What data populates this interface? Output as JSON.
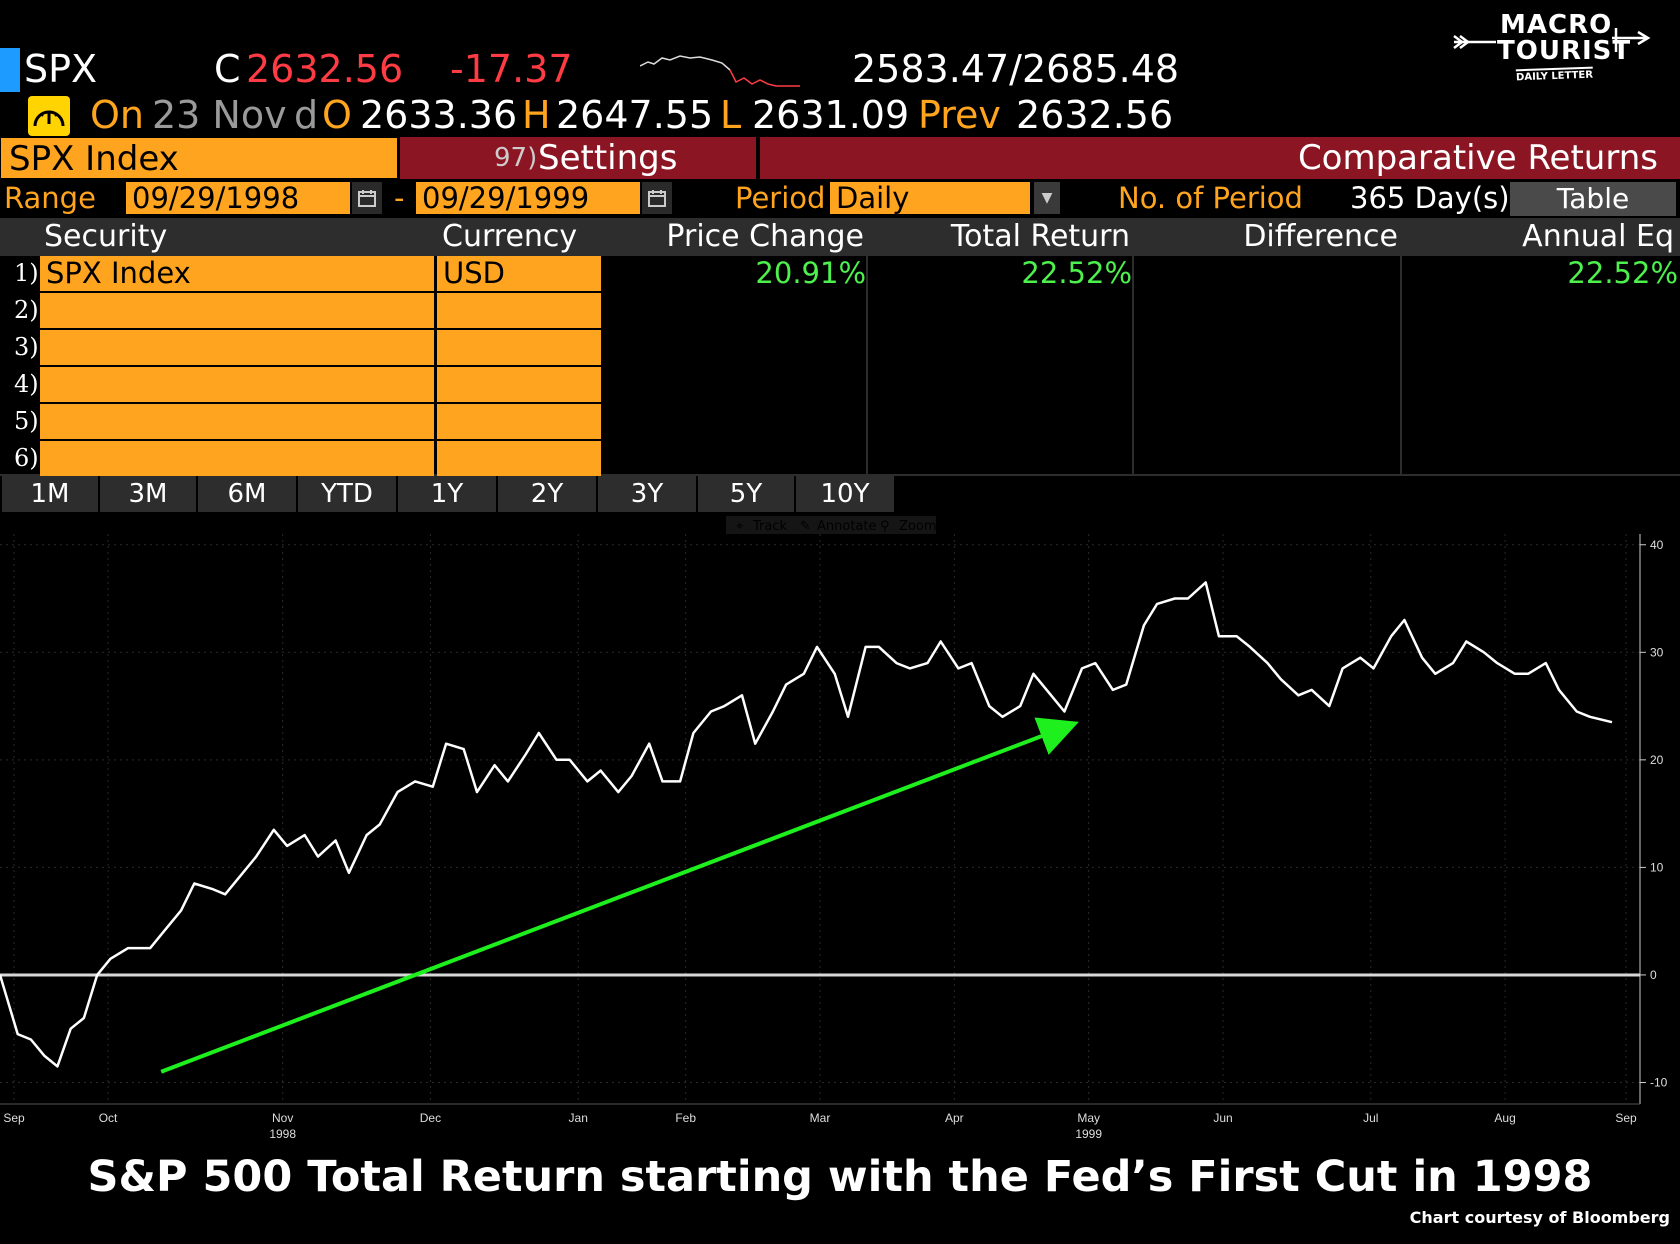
{
  "quote": {
    "ticker": "SPX",
    "close_prefix": "C",
    "close": "2632.56",
    "change": "-17.37",
    "range": "2583.47/2685.48",
    "on_label": "On",
    "date": "23 Nov",
    "d_label": "d",
    "open_label": "O",
    "open": "2633.36",
    "high_label": "H",
    "high": "2647.55",
    "low_label": "L",
    "low": "2631.09",
    "prev_label": "Prev",
    "prev": "2632.56"
  },
  "logo": {
    "line1": "MACRO",
    "line2": "TOURIST",
    "line3": "DAILY LETTER"
  },
  "titlebar": {
    "security": "SPX Index",
    "settings_num": "97)",
    "settings_label": "Settings",
    "function_title": "Comparative Returns"
  },
  "controls": {
    "range_label": "Range",
    "start_date": "09/29/1998",
    "separator": "-",
    "end_date": "09/29/1999",
    "period_label": "Period",
    "period_value": "Daily",
    "num_period_label": "No. of Period",
    "num_period_value": "365 Day(s)",
    "view_button": "Table"
  },
  "table": {
    "headers": {
      "security": "Security",
      "currency": "Currency",
      "price_change": "Price Change",
      "total_return": "Total Return",
      "difference": "Difference",
      "annual_eq": "Annual Eq"
    },
    "rows": [
      {
        "num": "1)",
        "security": "SPX Index",
        "currency": "USD",
        "price_change": "20.91%",
        "total_return": "22.52%",
        "difference": "",
        "annual_eq": "22.52%"
      },
      {
        "num": "2)",
        "security": "",
        "currency": "",
        "price_change": "",
        "total_return": "",
        "difference": "",
        "annual_eq": ""
      },
      {
        "num": "3)",
        "security": "",
        "currency": "",
        "price_change": "",
        "total_return": "",
        "difference": "",
        "annual_eq": ""
      },
      {
        "num": "4)",
        "security": "",
        "currency": "",
        "price_change": "",
        "total_return": "",
        "difference": "",
        "annual_eq": ""
      },
      {
        "num": "5)",
        "security": "",
        "currency": "",
        "price_change": "",
        "total_return": "",
        "difference": "",
        "annual_eq": ""
      },
      {
        "num": "6)",
        "security": "",
        "currency": "",
        "price_change": "",
        "total_return": "",
        "difference": "",
        "annual_eq": ""
      }
    ]
  },
  "period_tabs": [
    "1M",
    "3M",
    "6M",
    "YTD",
    "1Y",
    "2Y",
    "3Y",
    "5Y",
    "10Y"
  ],
  "chart_tools": {
    "track": "Track",
    "annotate": "Annotate",
    "zoom": "Zoom"
  },
  "colors": {
    "orange": "#ffa41e",
    "red_bar": "#8b1522",
    "green_value": "#4df04d",
    "arrow": "#1ef01e",
    "negative": "#ff3b44"
  },
  "icons": [
    "calendar-icon",
    "dropdown-arrow-icon",
    "speedometer-icon",
    "crosshair-icon",
    "pencil-icon",
    "magnifier-icon",
    "arrow-icon"
  ],
  "chart_data": {
    "type": "line",
    "ylim": [
      -12,
      41
    ],
    "yticks": [
      -10,
      0,
      10,
      20,
      30,
      40
    ],
    "ytick_labels": [
      "-10",
      "0",
      "10",
      "20",
      "30",
      "40"
    ],
    "month_labels": [
      "Sep",
      "Oct",
      "Nov",
      "Dec",
      "Jan",
      "Feb",
      "Mar",
      "Apr",
      "May",
      "Jun",
      "Jul",
      "Aug",
      "Sep"
    ],
    "month_positions": [
      0,
      0.07,
      0.2,
      0.31,
      0.42,
      0.5,
      0.6,
      0.7,
      0.8,
      0.9,
      1.01,
      1.11,
      1.2
    ],
    "year_labels": [
      {
        "text": "1998",
        "at": 0.2
      },
      {
        "text": "1999",
        "at": 0.8
      }
    ],
    "zero_line": 0,
    "series": [
      {
        "x": [
          "1998-09-29",
          "1998-10-03",
          "1998-10-06",
          "1998-10-09",
          "1998-10-12",
          "1998-10-15",
          "1998-10-18",
          "1998-10-21",
          "1998-10-24",
          "1998-10-28",
          "1998-11-02",
          "1998-11-05",
          "1998-11-09",
          "1998-11-12",
          "1998-11-16",
          "1998-11-19",
          "1998-11-23",
          "1998-11-26",
          "1998-11-30",
          "1998-12-03",
          "1998-12-07",
          "1998-12-10",
          "1998-12-14",
          "1998-12-17",
          "1998-12-21",
          "1998-12-24",
          "1998-12-28",
          "1999-01-01",
          "1999-01-05",
          "1999-01-08",
          "1999-01-12",
          "1999-01-15",
          "1999-01-19",
          "1999-01-22",
          "1999-01-26",
          "1999-01-29",
          "1999-02-02",
          "1999-02-05",
          "1999-02-09",
          "1999-02-12",
          "1999-02-16",
          "1999-02-19",
          "1999-02-23",
          "1999-02-26",
          "1999-03-02",
          "1999-03-05",
          "1999-03-09",
          "1999-03-12",
          "1999-03-16",
          "1999-03-19",
          "1999-03-23",
          "1999-03-26",
          "1999-03-30",
          "1999-04-02",
          "1999-04-06",
          "1999-04-09",
          "1999-04-13",
          "1999-04-16",
          "1999-04-20",
          "1999-04-23",
          "1999-04-27",
          "1999-04-30",
          "1999-05-04",
          "1999-05-07",
          "1999-05-11",
          "1999-05-14",
          "1999-05-18",
          "1999-05-21",
          "1999-05-25",
          "1999-05-28",
          "1999-06-01",
          "1999-06-04",
          "1999-06-08",
          "1999-06-11",
          "1999-06-15",
          "1999-06-18",
          "1999-06-22",
          "1999-06-25",
          "1999-06-29",
          "1999-07-02",
          "1999-07-06",
          "1999-07-09",
          "1999-07-13",
          "1999-07-16",
          "1999-07-20",
          "1999-07-23",
          "1999-07-27",
          "1999-07-30",
          "1999-08-03",
          "1999-08-06",
          "1999-08-10",
          "1999-08-13",
          "1999-08-17",
          "1999-08-20",
          "1999-08-24",
          "1999-08-27",
          "1999-08-31",
          "1999-09-03",
          "1999-09-07",
          "1999-09-10",
          "1999-09-14",
          "1999-09-17",
          "1999-09-21",
          "1999-09-24",
          "1999-09-29"
        ],
        "y": [
          0,
          -5.5,
          -6,
          -7.5,
          -8.5,
          -5,
          -4,
          0,
          1.5,
          2.5,
          2.5,
          4,
          6,
          8.5,
          8,
          7.5,
          9.5,
          11,
          13.5,
          12,
          13,
          11,
          12.5,
          9.5,
          13,
          14,
          17,
          18,
          17.5,
          21.5,
          21,
          17,
          19.5,
          18,
          20.5,
          22.5,
          20,
          20,
          18,
          19,
          17,
          18.5,
          21.5,
          18,
          18,
          22.5,
          24.5,
          25,
          26,
          21.5,
          24.5,
          27,
          28,
          30.5,
          28,
          24,
          30.5,
          30.5,
          29,
          28.5,
          29,
          31,
          28.5,
          29,
          25,
          24,
          25,
          28,
          26,
          24.5,
          28.5,
          29,
          26.5,
          27,
          32.5,
          34.5,
          35,
          35,
          36.5,
          31.5,
          31.5,
          30.5,
          29,
          27.5,
          26,
          26.5,
          25,
          28.5,
          29.5,
          28.5,
          31.5,
          33,
          29.5,
          28,
          29,
          31,
          30,
          29,
          28,
          28,
          29,
          26.5,
          24.5,
          24,
          23.5
        ]
      }
    ],
    "annotation": {
      "type": "arrow",
      "color": "#1ef01e",
      "from": [
        0.1,
        -9
      ],
      "to": [
        0.66,
        23
      ]
    }
  },
  "caption": "S&P 500 Total Return starting with the Fed’s First Cut in 1998",
  "credit": "Chart courtesy of Bloomberg"
}
